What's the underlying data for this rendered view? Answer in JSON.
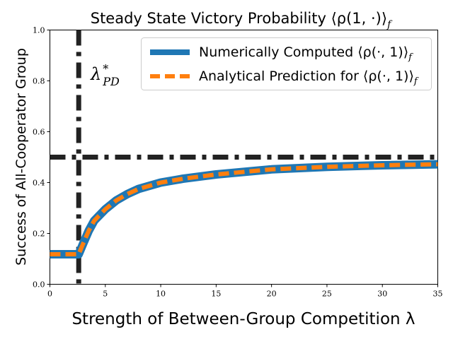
{
  "chart_data": {
    "type": "line",
    "title": "Steady State Victory Probability ⟨ρ(1, ·)⟩",
    "title_sub": "f",
    "xlabel": "Strength of Between-Group Competition λ",
    "ylabel": "Success of All-Cooperator Group",
    "xlim": [
      0,
      35
    ],
    "ylim": [
      0,
      1.0
    ],
    "x_ticks": [
      0,
      5,
      10,
      15,
      20,
      25,
      30,
      35
    ],
    "y_ticks": [
      0.0,
      0.2,
      0.4,
      0.6,
      0.8,
      1.0
    ],
    "x_tick_labels": [
      "0",
      "5",
      "10",
      "15",
      "20",
      "25",
      "30",
      "35"
    ],
    "y_tick_labels": [
      "0.0",
      "0.2",
      "0.4",
      "0.6",
      "0.8",
      "1.0"
    ],
    "legend_position": "upper-right",
    "series": [
      {
        "name": "Numerically Computed ⟨ρ(·, 1)⟩",
        "name_sub": "f",
        "color": "#1f77b4",
        "style": "solid",
        "x": [
          0,
          1,
          2,
          2.6,
          3,
          3.5,
          4,
          5,
          6,
          7,
          8,
          10,
          12,
          15,
          20,
          25,
          30,
          35
        ],
        "y": [
          0.118,
          0.118,
          0.118,
          0.118,
          0.16,
          0.21,
          0.25,
          0.295,
          0.33,
          0.355,
          0.375,
          0.4,
          0.415,
          0.432,
          0.452,
          0.462,
          0.468,
          0.472
        ]
      },
      {
        "name": "Analytical Prediction for ⟨ρ(·, 1)⟩",
        "name_sub": "f",
        "color": "#ff7f0e",
        "style": "dashed",
        "x": [
          0,
          1,
          2,
          2.6,
          3,
          3.5,
          4,
          5,
          6,
          7,
          8,
          10,
          12,
          15,
          20,
          25,
          30,
          35
        ],
        "y": [
          0.118,
          0.118,
          0.118,
          0.118,
          0.16,
          0.21,
          0.25,
          0.295,
          0.33,
          0.355,
          0.375,
          0.4,
          0.415,
          0.432,
          0.452,
          0.462,
          0.468,
          0.472
        ]
      }
    ],
    "reference_lines": [
      {
        "orientation": "vertical",
        "x": 2.6,
        "color": "#222222",
        "style": "dashdot"
      },
      {
        "orientation": "horizontal",
        "y": 0.5,
        "color": "#222222",
        "style": "dashdot"
      }
    ],
    "annotations": [
      {
        "text": "λ",
        "superscript": "*",
        "subscript": "PD",
        "x": 3.6,
        "y": 0.82
      }
    ]
  }
}
